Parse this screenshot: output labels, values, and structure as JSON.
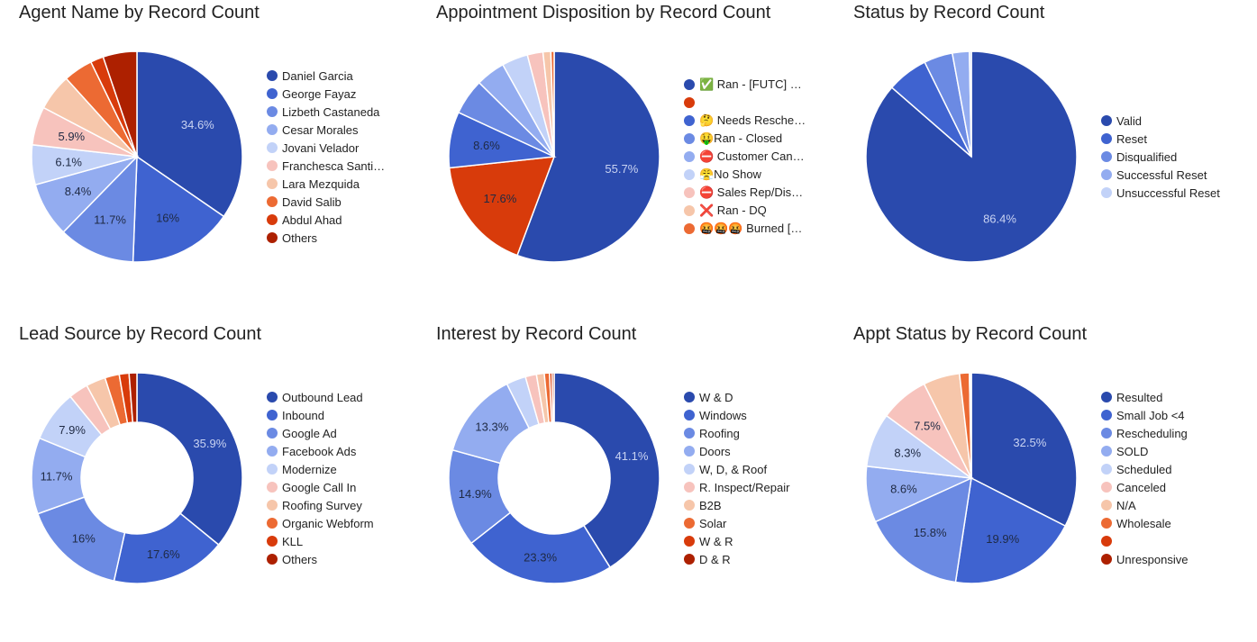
{
  "palette": [
    "#2a4aad",
    "#3f63d0",
    "#6b8ae3",
    "#93acf0",
    "#c2d2f8",
    "#f7c3bd",
    "#f6c6aa",
    "#ec6a33",
    "#d83b0b",
    "#ad2000"
  ],
  "chart_data": [
    {
      "type": "pie",
      "title": "Agent Name by Record Count",
      "donut": false,
      "categories": [
        "Daniel Garcia",
        "George Fayaz",
        "Lizbeth Castaneda",
        "Cesar Morales",
        "Jovani Velador",
        "Franchesca Santi…",
        "Lara Mezquida",
        "David Salib",
        "Abdul Ahad",
        "Others"
      ],
      "values": [
        34.6,
        16,
        11.7,
        8.4,
        6.1,
        5.9,
        5.6,
        4.5,
        2.0,
        5.2
      ],
      "labels": [
        "34.6%",
        "16%",
        "11.7%",
        "8.4%",
        "6.1%",
        "5.9%",
        "",
        "",
        "",
        ""
      ],
      "colors": [
        "#2a4aad",
        "#3f63d0",
        "#6b8ae3",
        "#93acf0",
        "#c2d2f8",
        "#f7c3bd",
        "#f6c6aa",
        "#ec6a33",
        "#d83b0b",
        "#ad2000"
      ],
      "legend": "right"
    },
    {
      "type": "pie",
      "title": "Appointment Disposition by Record Count",
      "donut": false,
      "categories": [
        "✅ Ran - [FUTC] …",
        "",
        "🤔 Needs Resche…",
        "🤑Ran - Closed",
        "⛔ Customer Can…",
        "😤No Show",
        "⛔ Sales Rep/Dis…",
        "❌ Ran - DQ",
        "🤬🤬🤬 Burned […"
      ],
      "values": [
        55.7,
        17.6,
        8.6,
        5.5,
        4.5,
        4.0,
        2.4,
        1.2,
        0.5
      ],
      "labels": [
        "55.7%",
        "17.6%",
        "8.6%",
        "",
        "",
        "",
        "",
        "",
        ""
      ],
      "colors": [
        "#2a4aad",
        "#d83b0b",
        "#3f63d0",
        "#6b8ae3",
        "#93acf0",
        "#c2d2f8",
        "#f7c3bd",
        "#f6c6aa",
        "#ec6a33"
      ],
      "legend": "right"
    },
    {
      "type": "pie",
      "title": "Status by Record Count",
      "donut": false,
      "categories": [
        "Valid",
        "Reset",
        "Disqualified",
        "Successful Reset",
        "Unsuccessful Reset"
      ],
      "values": [
        86.4,
        6.3,
        4.4,
        2.6,
        0.3
      ],
      "labels": [
        "86.4%",
        "",
        "",
        "",
        ""
      ],
      "colors": [
        "#2a4aad",
        "#3f63d0",
        "#6b8ae3",
        "#93acf0",
        "#c2d2f8"
      ],
      "legend": "right"
    },
    {
      "type": "pie",
      "title": "Lead Source by Record Count",
      "donut": true,
      "categories": [
        "Outbound Lead",
        "Inbound",
        "Google Ad",
        "Facebook Ads",
        "Modernize",
        "Google Call In",
        "Roofing Survey",
        "Organic Webform",
        "KLL",
        "Others"
      ],
      "values": [
        35.9,
        17.6,
        16,
        11.7,
        7.9,
        3.0,
        3.0,
        2.2,
        1.5,
        1.2
      ],
      "labels": [
        "35.9%",
        "17.6%",
        "16%",
        "11.7%",
        "7.9%",
        "",
        "",
        "",
        "",
        ""
      ],
      "colors": [
        "#2a4aad",
        "#3f63d0",
        "#6b8ae3",
        "#93acf0",
        "#c2d2f8",
        "#f7c3bd",
        "#f6c6aa",
        "#ec6a33",
        "#d83b0b",
        "#ad2000"
      ],
      "legend": "right"
    },
    {
      "type": "pie",
      "title": "Interest by Record Count",
      "donut": true,
      "categories": [
        "W & D",
        "Windows",
        "Roofing",
        "Doors",
        "W, D, & Roof",
        "R. Inspect/Repair",
        "B2B",
        "Solar",
        "W & R",
        "D & R"
      ],
      "values": [
        41.1,
        23.3,
        14.9,
        13.3,
        3.0,
        1.7,
        1.2,
        0.8,
        0.4,
        0.3
      ],
      "labels": [
        "41.1%",
        "23.3%",
        "14.9%",
        "13.3%",
        "",
        "",
        "",
        "",
        "",
        ""
      ],
      "colors": [
        "#2a4aad",
        "#3f63d0",
        "#6b8ae3",
        "#93acf0",
        "#c2d2f8",
        "#f7c3bd",
        "#f6c6aa",
        "#ec6a33",
        "#d83b0b",
        "#ad2000"
      ],
      "legend": "right"
    },
    {
      "type": "pie",
      "title": "Appt Status by Record Count",
      "donut": false,
      "categories": [
        "Resulted",
        "Small Job <4",
        "Rescheduling",
        "SOLD",
        "Scheduled",
        "Canceled",
        "N/A",
        "Wholesale",
        "",
        "Unresponsive"
      ],
      "values": [
        32.5,
        19.9,
        15.8,
        8.6,
        8.3,
        7.5,
        5.6,
        1.5,
        0.2,
        0.1
      ],
      "labels": [
        "32.5%",
        "19.9%",
        "15.8%",
        "8.6%",
        "8.3%",
        "7.5%",
        "",
        "",
        "",
        ""
      ],
      "colors": [
        "#2a4aad",
        "#3f63d0",
        "#6b8ae3",
        "#93acf0",
        "#c2d2f8",
        "#f7c3bd",
        "#f6c6aa",
        "#ec6a33",
        "#d83b0b",
        "#ad2000"
      ],
      "legend": "right"
    }
  ]
}
